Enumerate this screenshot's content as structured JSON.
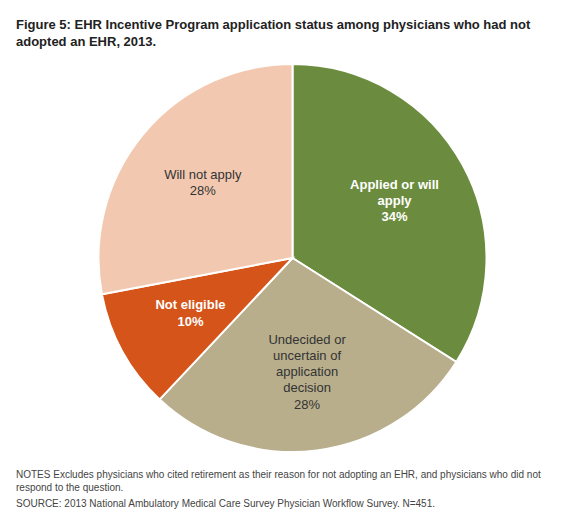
{
  "chart_data": {
    "type": "pie",
    "title": "Figure 5: EHR Incentive Program application status among physicians who had not adopted an EHR, 2013.",
    "categories": [
      "Applied or will\napply",
      "Undecided or\nuncertain of\napplication\ndecision",
      "Not eligible",
      "Will not apply"
    ],
    "values": [
      34,
      28,
      10,
      28
    ],
    "value_labels": [
      "34%",
      "28%",
      "10%",
      "28%"
    ],
    "colors": [
      "#6b8c3e",
      "#b8ae8c",
      "#d4541a",
      "#f2c9b0"
    ],
    "data_labels": true,
    "notes": [
      "NOTES Excludes physicians who cited retirement as their reason for not adopting an EHR, and physicians who did not respond to the question.",
      "SOURCE: 2013 National Ambulatory Medical Care Survey Physician Workflow Survey. N=451."
    ]
  }
}
